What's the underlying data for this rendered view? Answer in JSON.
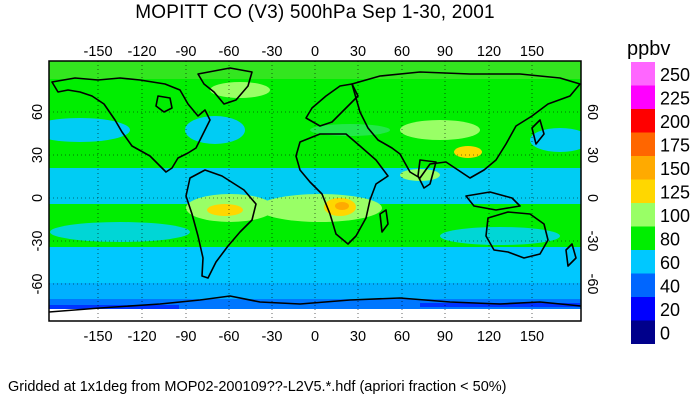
{
  "title": "MOPITT CO (V3) 500hPa Sep 1-30, 2001",
  "footer": "Gridded at 1x1deg from MOP02-200109??-L2V5.*.hdf (apriori fraction < 50%)",
  "longitude_ticks": [
    "-150",
    "-120",
    "-90",
    "-60",
    "-30",
    "0",
    "30",
    "60",
    "90",
    "120",
    "150"
  ],
  "latitude_ticks": [
    "60",
    "30",
    "0",
    "-30",
    "-60"
  ],
  "colorbar": {
    "unit": "ppbv",
    "levels": [
      {
        "label": "250",
        "color": "#ff66ff"
      },
      {
        "label": "225",
        "color": "#ff00ff"
      },
      {
        "label": "200",
        "color": "#ff0000"
      },
      {
        "label": "175",
        "color": "#ff6600"
      },
      {
        "label": "150",
        "color": "#ffaa00"
      },
      {
        "label": "125",
        "color": "#ffd700"
      },
      {
        "label": "100",
        "color": "#99ff66"
      },
      {
        "label": "80",
        "color": "#00ee00"
      },
      {
        "label": "60",
        "color": "#00c8ff"
      },
      {
        "label": "40",
        "color": "#0066ff"
      },
      {
        "label": "20",
        "color": "#0000ff"
      },
      {
        "label": "0",
        "color": "#00008b"
      }
    ]
  }
}
